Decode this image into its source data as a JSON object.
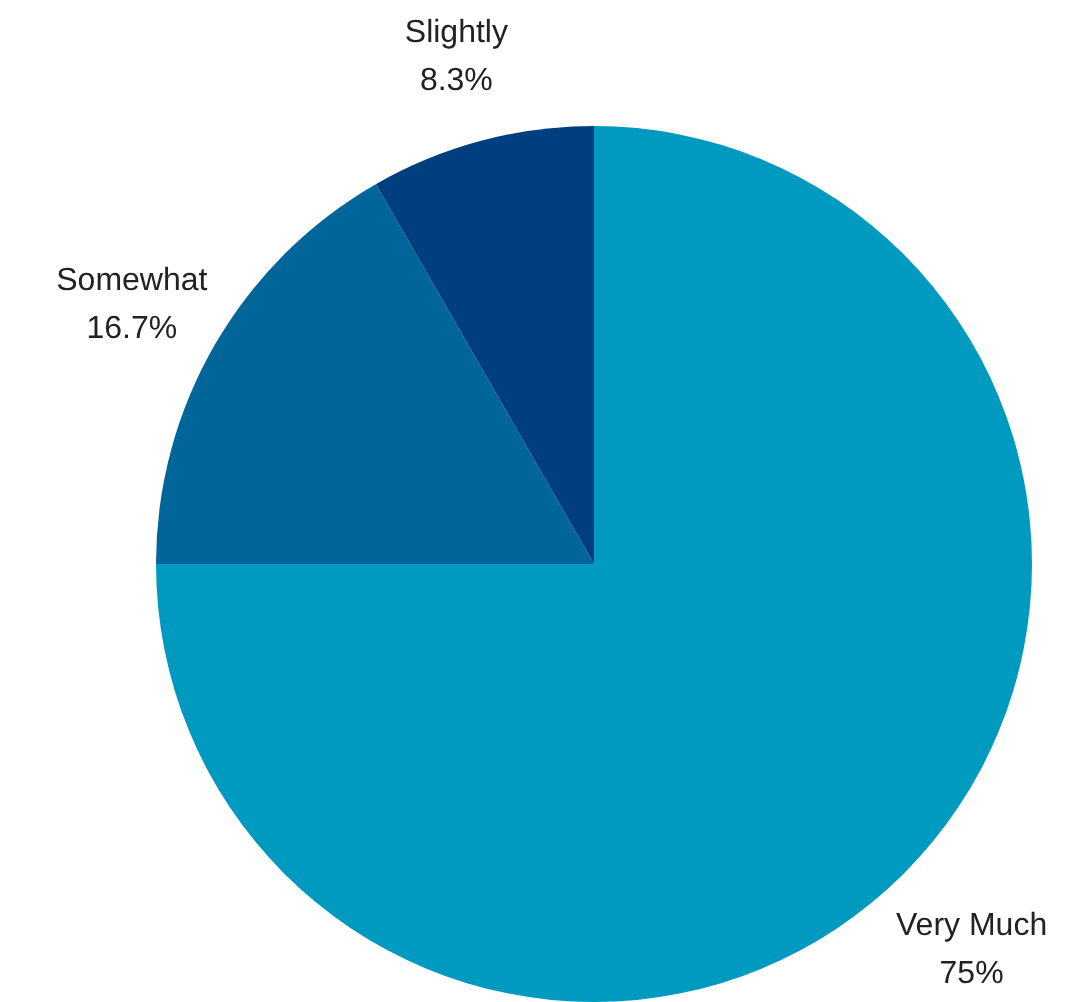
{
  "chart_data": {
    "type": "pie",
    "categories": [
      "Very Much",
      "Somewhat",
      "Slightly"
    ],
    "values": [
      75,
      16.7,
      8.3
    ],
    "value_labels": [
      "75%",
      "16.7%",
      "8.3%"
    ],
    "colors": [
      "#0099bf",
      "#006699",
      "#003f7f"
    ]
  }
}
